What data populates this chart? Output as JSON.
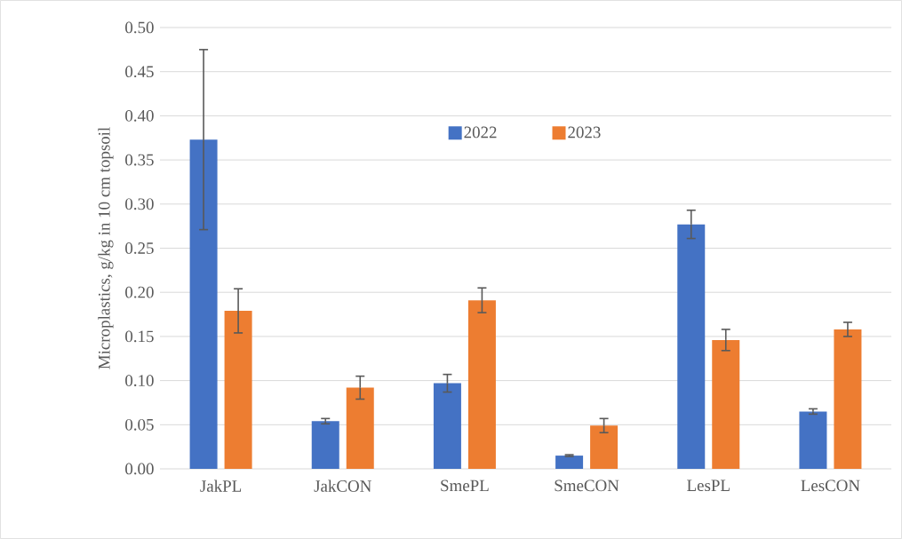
{
  "chart_data": {
    "type": "bar",
    "categories": [
      "JakPL",
      "JakCON",
      "SmePL",
      "SmeCON",
      "LesPL",
      "LesCON"
    ],
    "series": [
      {
        "name": "2022",
        "color": "#4472c4",
        "values": [
          0.373,
          0.054,
          0.097,
          0.015,
          0.277,
          0.065
        ],
        "errors": [
          0.102,
          0.003,
          0.01,
          0.001,
          0.016,
          0.003
        ]
      },
      {
        "name": "2023",
        "color": "#ed7d31",
        "values": [
          0.179,
          0.092,
          0.191,
          0.049,
          0.146,
          0.158
        ],
        "errors": [
          0.025,
          0.013,
          0.014,
          0.008,
          0.012,
          0.008
        ]
      }
    ],
    "ylabel": "Microplastics, g/kg in 10 cm topsoil",
    "ylim": [
      0,
      0.5
    ],
    "yticks": [
      {
        "value": 0,
        "label": "0.00"
      },
      {
        "value": 0.05,
        "label": "0.05"
      },
      {
        "value": 0.1,
        "label": "0.10"
      },
      {
        "value": 0.15,
        "label": "0.15"
      },
      {
        "value": 0.2,
        "label": "0.20"
      },
      {
        "value": 0.25,
        "label": "0.25"
      },
      {
        "value": 0.3,
        "label": "0.30"
      },
      {
        "value": 0.35,
        "label": "0.35"
      },
      {
        "value": 0.4,
        "label": "0.40"
      },
      {
        "value": 0.45,
        "label": "0.45"
      },
      {
        "value": 0.5,
        "label": "0.50"
      }
    ],
    "grid": "y",
    "legend": "top"
  }
}
